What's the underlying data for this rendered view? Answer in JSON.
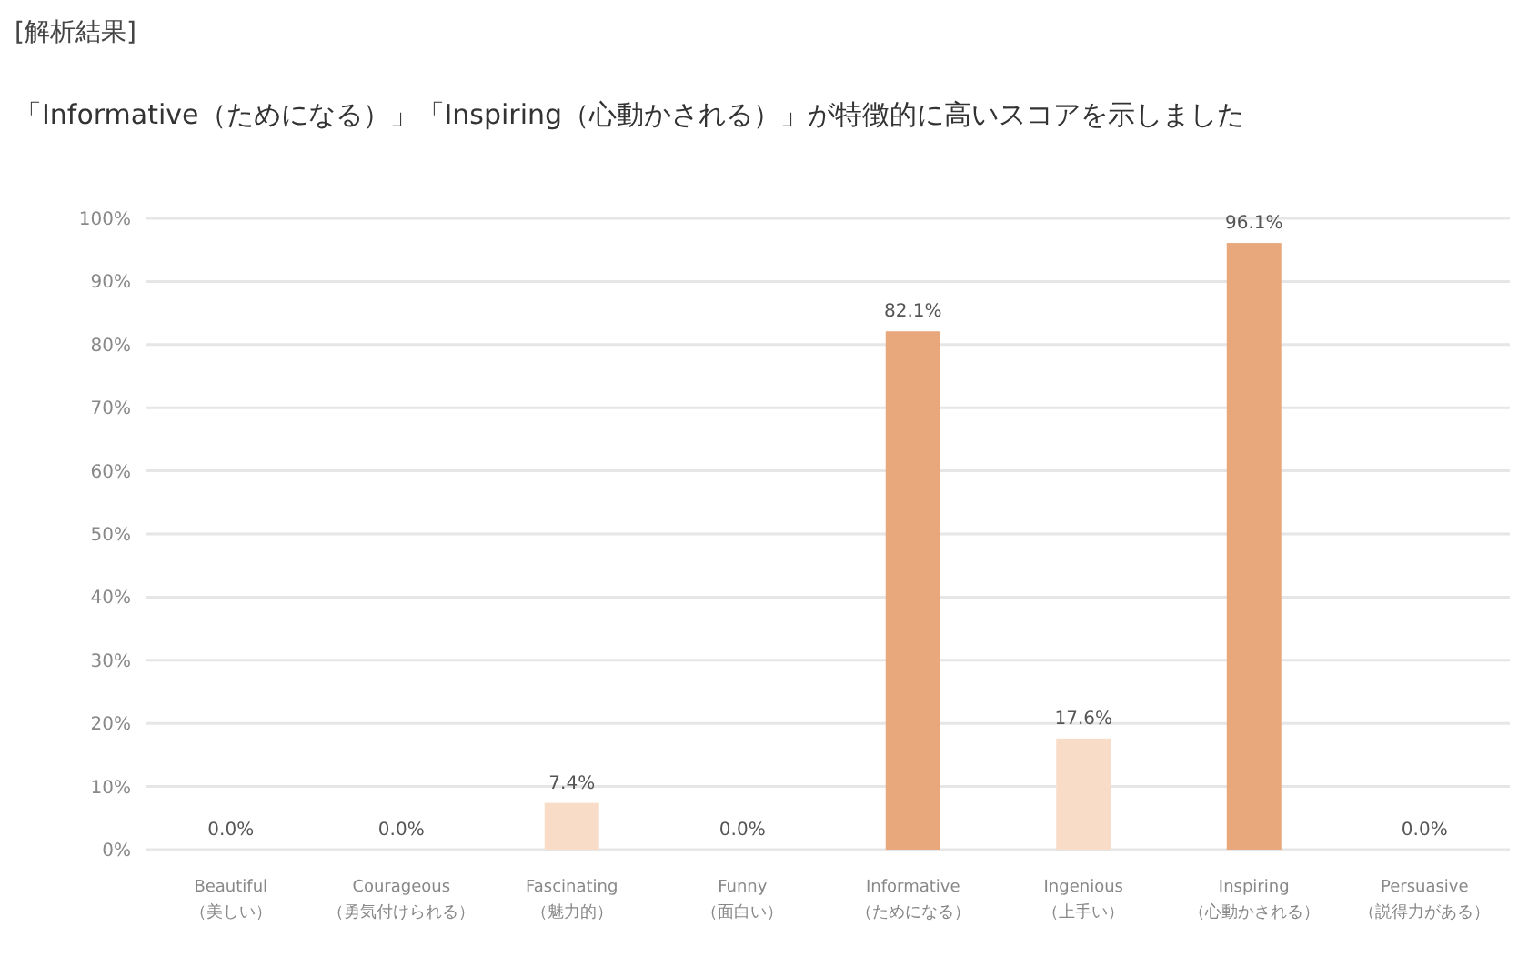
{
  "chart_data": {
    "type": "bar",
    "title": "[解析結果]",
    "subtitle": "「Informative（ためになる）」「Inspiring（心動かされる）」が特徴的に高いスコアを示しました",
    "categories": [
      "Beautiful\n（美しい）",
      "Courageous\n（勇気付けられる）",
      "Fascinating\n（魅力的）",
      "Funny\n（面白い）",
      "Informative\n（ためになる）",
      "Ingenious\n（上手い）",
      "Inspiring\n（心動かされる）",
      "Persuasive\n（説得力がある）"
    ],
    "values": [
      0,
      0,
      7.4,
      0,
      82.1,
      17.6,
      96.1,
      0
    ],
    "value_labels": [
      "0.0%",
      "0.0%",
      "7.4%",
      "0.0%",
      "82.1%",
      "17.6%",
      "96.1%",
      "0.0%"
    ],
    "colors": [
      "#f8dcc8",
      "#f8dcc8",
      "#f8dcc8",
      "#f8dcc8",
      "#e8a87c",
      "#f8dcc8",
      "#e8a87c",
      "#f8dcc8"
    ],
    "ylim": [
      0,
      100
    ],
    "yticks": [
      {
        "value": 0,
        "label": "0%"
      },
      {
        "value": 10,
        "label": "10%"
      },
      {
        "value": 20,
        "label": "20%"
      },
      {
        "value": 30,
        "label": "30%"
      },
      {
        "value": 40,
        "label": "40%"
      },
      {
        "value": 50,
        "label": "50%"
      },
      {
        "value": 60,
        "label": "60%"
      },
      {
        "value": 70,
        "label": "70%"
      },
      {
        "value": 80,
        "label": "80%"
      },
      {
        "value": 90,
        "label": "90%"
      },
      {
        "value": 100,
        "label": "100%"
      }
    ],
    "grid": "y"
  }
}
